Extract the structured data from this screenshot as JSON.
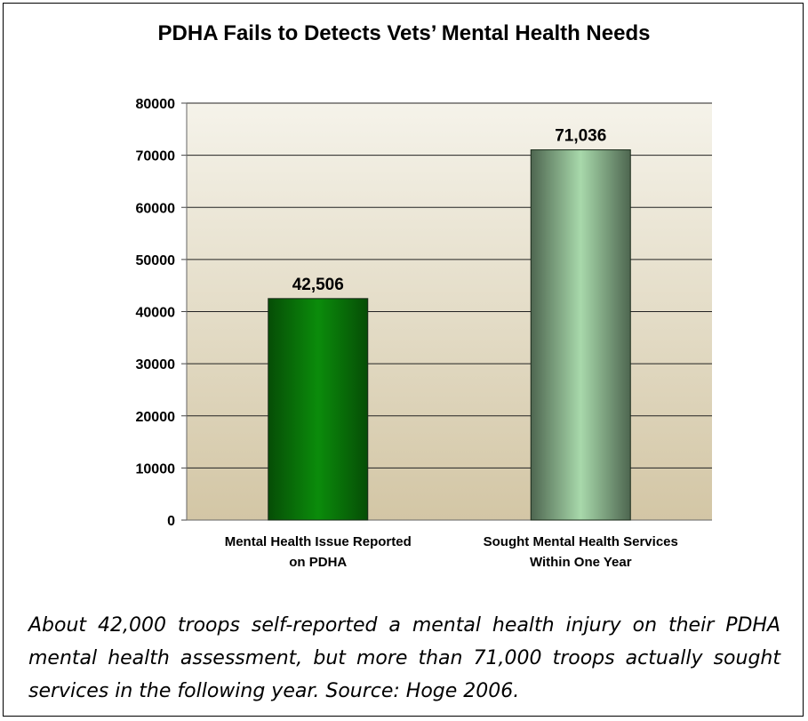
{
  "caption": "About 42,000 troops self-reported a mental health injury on their PDHA mental health assessment, but more than 71,000 troops actually sought services in the following year.  Source: Hoge 2006.",
  "chart_data": {
    "type": "bar",
    "title": "PDHA Fails to Detects Vets’ Mental Health Needs",
    "xlabel": "",
    "ylabel": "",
    "ylim": [
      0,
      80000
    ],
    "yticks": [
      0,
      10000,
      20000,
      30000,
      40000,
      50000,
      60000,
      70000,
      80000
    ],
    "categories": [
      [
        "Mental Health Issue Reported",
        "on PDHA"
      ],
      [
        "Sought Mental Health Services",
        "Within One Year"
      ]
    ],
    "values": [
      42506,
      71036
    ],
    "data_labels": [
      "42,506",
      "71,036"
    ],
    "grid": true,
    "legend": "none",
    "colors": {
      "bar_1": "#0a7a0a",
      "bar_2": "#9fcfa2",
      "plot_bg_top": "#f5f3ea",
      "plot_bg_bottom": "#d3c6a5"
    }
  }
}
